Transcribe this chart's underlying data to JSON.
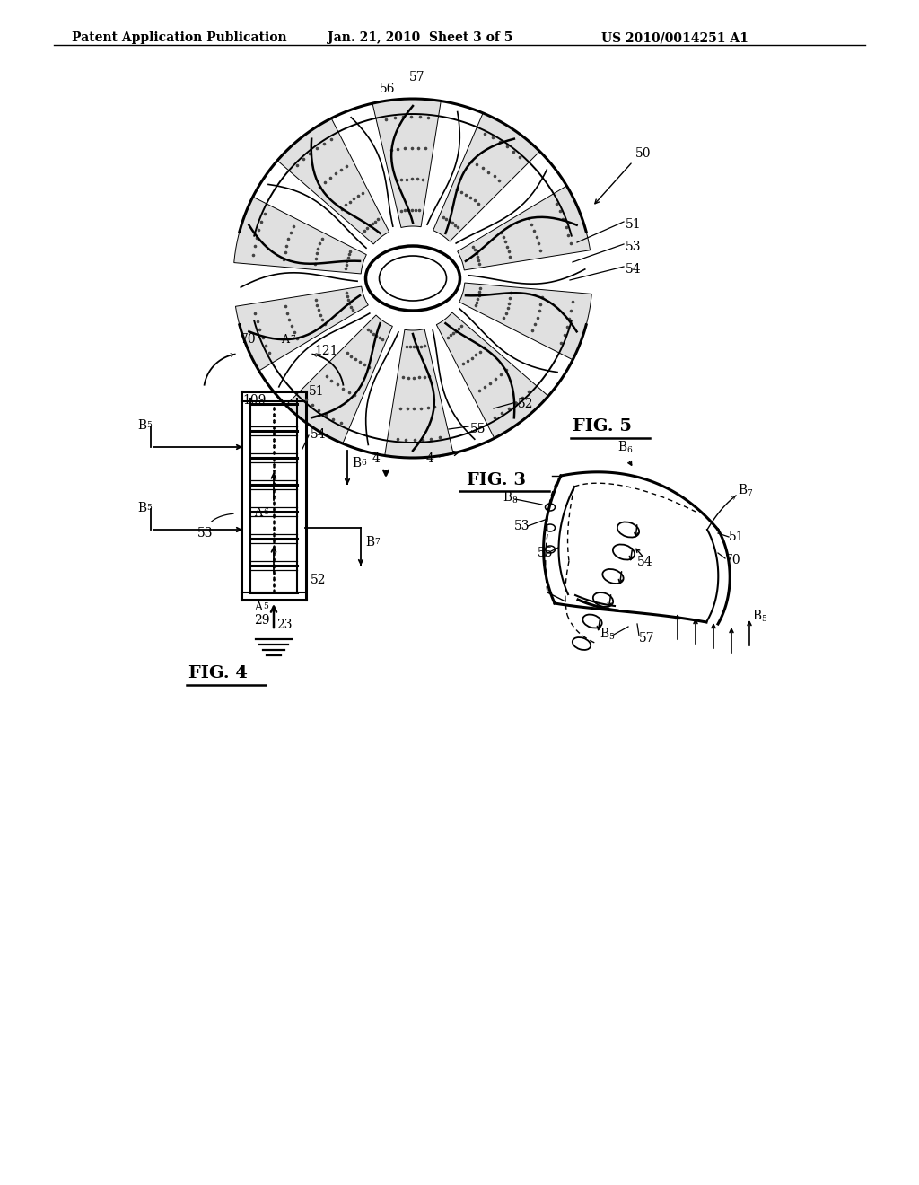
{
  "title_text": "Patent Application Publication",
  "date_text": "Jan. 21, 2010  Sheet 3 of 5",
  "patent_text": "US 2010/0014251 A1",
  "fig3_label": "FIG. 3",
  "fig4_label": "FIG. 4",
  "fig5_label": "FIG. 5",
  "bg_color": "#ffffff",
  "line_color": "#000000"
}
